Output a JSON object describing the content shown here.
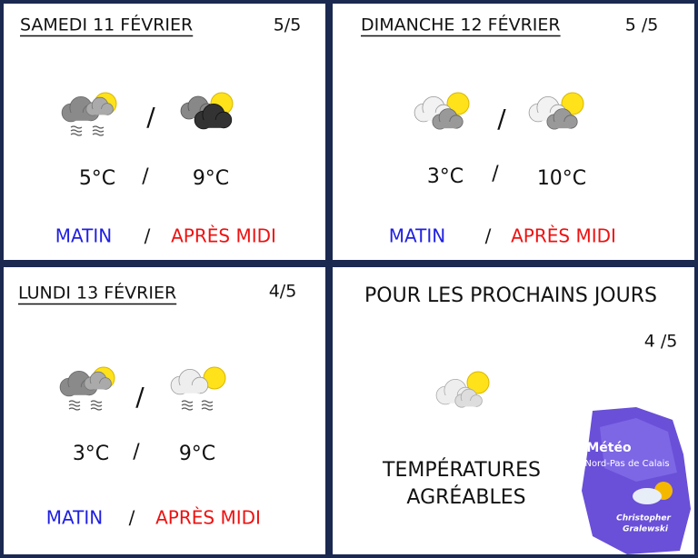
{
  "days": [
    {
      "title": "SAMEDI 11 FÉVRIER",
      "reliability": "5/5",
      "separator": "/",
      "morning_temp": "5°C",
      "afternoon_temp": "9°C",
      "morning_label": "MATIN",
      "afternoon_label": "APRÈS MIDI"
    },
    {
      "title": "DIMANCHE 12 FÉVRIER",
      "reliability": "5 /5",
      "separator": "/",
      "morning_temp": "3°C",
      "afternoon_temp": "10°C",
      "morning_label": "MATIN",
      "afternoon_label": "APRÈS MIDI"
    },
    {
      "title": "LUNDI 13 FÉVRIER",
      "reliability": "4/5",
      "separator": "/",
      "morning_temp": "3°C",
      "afternoon_temp": "9°C",
      "morning_label": "MATIN",
      "afternoon_label": "APRÈS MIDI"
    }
  ],
  "outlook": {
    "title": "POUR LES PROCHAINS JOURS",
    "reliability": "4 /5",
    "lines": [
      "TEMPÉRATURES",
      "AGRÉABLES"
    ]
  },
  "logo": {
    "title": "Météo",
    "subtitle": "Nord-Pas de Calais",
    "author": [
      "Christopher",
      "Gralewski"
    ]
  }
}
